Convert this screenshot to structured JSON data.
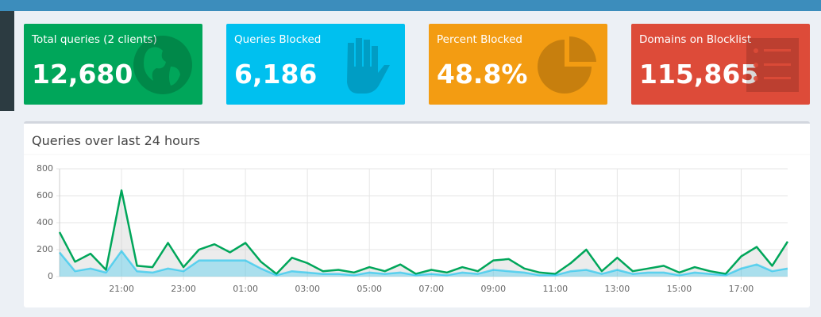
{
  "stats": [
    {
      "label": "Total queries (2 clients)",
      "value": "12,680"
    },
    {
      "label": "Queries Blocked",
      "value": "6,186"
    },
    {
      "label": "Percent Blocked",
      "value": "48.8%"
    },
    {
      "label": "Domains on Blocklist",
      "value": "115,865"
    }
  ],
  "chart_data": {
    "type": "area",
    "title": "Queries over last 24 hours",
    "x": [
      19,
      19.5,
      20,
      20.5,
      21,
      21.5,
      22,
      22.5,
      23,
      23.5,
      24,
      24.5,
      25,
      25.5,
      26,
      26.5,
      27,
      27.5,
      28,
      28.5,
      29,
      29.5,
      30,
      30.5,
      31,
      31.5,
      32,
      32.5,
      33,
      33.5,
      34,
      34.5,
      35,
      35.5,
      36,
      36.5,
      37,
      37.5,
      38,
      38.5,
      39,
      39.5,
      40,
      40.5,
      41,
      41.5,
      42,
      42.5
    ],
    "xlim": [
      19,
      42.5
    ],
    "xticks": [
      {
        "value": 21,
        "label": "21:00"
      },
      {
        "value": 23,
        "label": "23:00"
      },
      {
        "value": 25,
        "label": "01:00"
      },
      {
        "value": 27,
        "label": "03:00"
      },
      {
        "value": 29,
        "label": "05:00"
      },
      {
        "value": 31,
        "label": "07:00"
      },
      {
        "value": 33,
        "label": "09:00"
      },
      {
        "value": 35,
        "label": "11:00"
      },
      {
        "value": 37,
        "label": "13:00"
      },
      {
        "value": 39,
        "label": "15:00"
      },
      {
        "value": 41,
        "label": "17:00"
      }
    ],
    "ylim": [
      0,
      800
    ],
    "yticks": [
      0,
      200,
      400,
      600,
      800
    ],
    "grid": true,
    "series": [
      {
        "color": "#00a65a",
        "values": [
          330,
          110,
          170,
          50,
          640,
          80,
          70,
          250,
          70,
          200,
          240,
          180,
          250,
          110,
          20,
          140,
          100,
          40,
          50,
          30,
          70,
          40,
          90,
          20,
          50,
          30,
          70,
          40,
          120,
          130,
          60,
          30,
          20,
          100,
          200,
          40,
          140,
          40,
          60,
          80,
          30,
          70,
          40,
          20,
          150,
          220,
          80,
          260
        ]
      },
      {
        "color": "#00c0ef",
        "values": [
          180,
          40,
          60,
          30,
          190,
          40,
          30,
          60,
          40,
          120,
          120,
          120,
          120,
          60,
          10,
          40,
          30,
          20,
          20,
          10,
          30,
          20,
          30,
          10,
          20,
          10,
          30,
          20,
          50,
          40,
          30,
          10,
          10,
          40,
          50,
          20,
          50,
          20,
          30,
          30,
          10,
          30,
          20,
          10,
          60,
          90,
          40,
          60
        ]
      }
    ]
  }
}
